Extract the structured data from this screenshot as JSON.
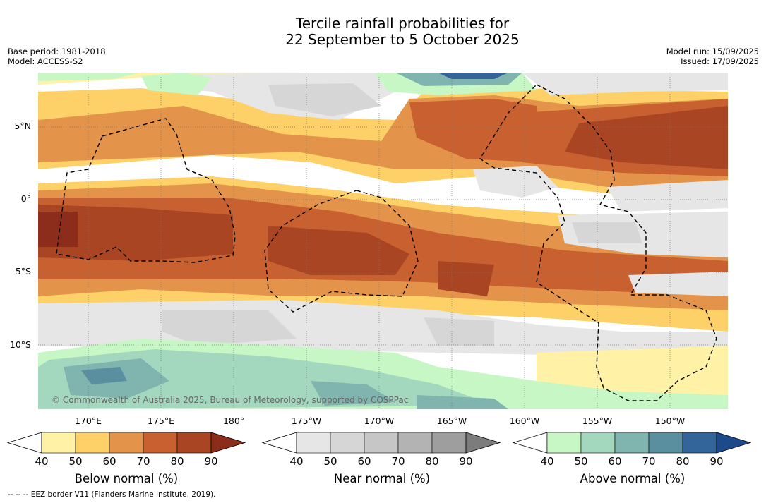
{
  "title_line1": "Tercile rainfall probabilities for",
  "title_line2": "22 September to 5 October 2025",
  "meta_left": [
    "Base period: 1981-2018",
    "Model: ACCESS-S2"
  ],
  "meta_right": [
    "Model run: 15/09/2025",
    "Issued: 17/09/2025"
  ],
  "copyright": "© Commonwealth of Australia 2025, Bureau of Meteorology, supported by COSPPac",
  "lat_labels": [
    "5°N",
    "0°",
    "5°S",
    "10°S"
  ],
  "lon_labels": [
    "170°E",
    "175°E",
    "180°",
    "175°W",
    "170°W",
    "165°W",
    "160°W",
    "155°W",
    "150°W"
  ],
  "colorbars": [
    {
      "title": "Below normal (%)",
      "ticks": [
        "40",
        "50",
        "60",
        "70",
        "80",
        "90"
      ],
      "colors": [
        "#fff1a6",
        "#fdd068",
        "#e3944a",
        "#c9602f",
        "#a94523",
        "#8c2d1b"
      ]
    },
    {
      "title": "Near normal (%)",
      "ticks": [
        "40",
        "50",
        "60",
        "70",
        "80",
        "90"
      ],
      "colors": [
        "#e6e6e6",
        "#d6d6d6",
        "#c6c6c6",
        "#b3b3b3",
        "#9e9e9e",
        "#7c7c7c"
      ]
    },
    {
      "title": "Above normal (%)",
      "ticks": [
        "40",
        "50",
        "60",
        "70",
        "80",
        "90"
      ],
      "colors": [
        "#c7f7c5",
        "#a3d8be",
        "#7fb5ae",
        "#5a8fa0",
        "#33649a",
        "#1d4a8a"
      ]
    }
  ],
  "footer": "-- -- -- EEZ border V11 (Flanders Marine Institute, 2019)."
}
